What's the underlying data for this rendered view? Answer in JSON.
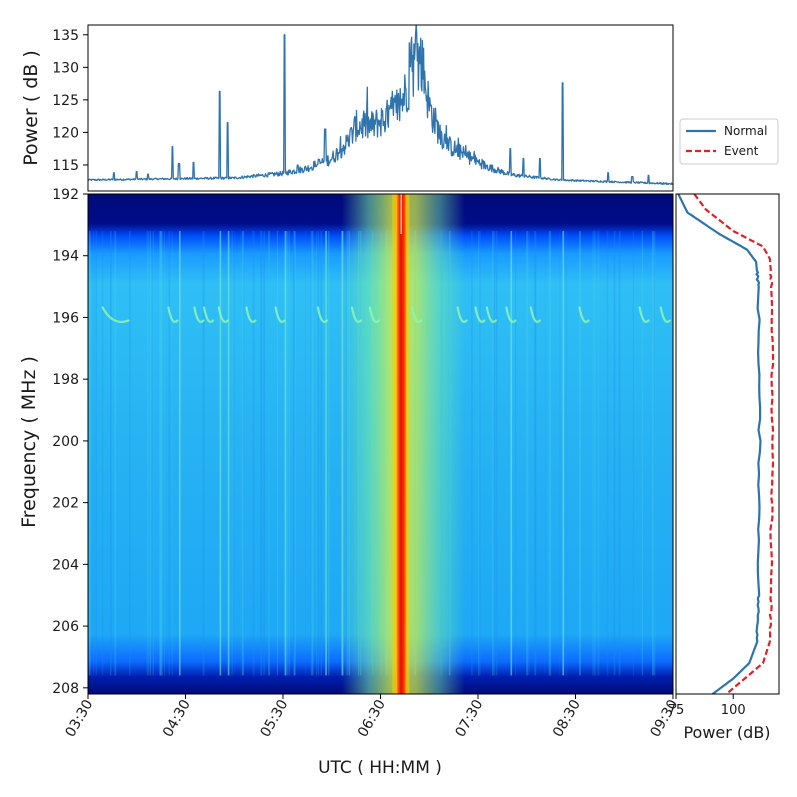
{
  "chart_data": [
    {
      "type": "line",
      "name": "power-timeseries",
      "ylabel": "Power ( dB )",
      "yticks": [
        115,
        120,
        125,
        130,
        135
      ],
      "ylim": [
        111,
        136.5
      ],
      "xlim_minutes": [
        210,
        570
      ],
      "series": [
        {
          "name": "Power",
          "color": "#2f73ad",
          "baseline": 112.7,
          "envelope": [
            [
              210,
              112.7
            ],
            [
              300,
              113
            ],
            [
              330,
              113.7
            ],
            [
              345,
              114.5
            ],
            [
              360,
              116
            ],
            [
              370,
              118.5
            ],
            [
              375,
              121
            ],
            [
              385,
              121
            ],
            [
              395,
              122.5
            ],
            [
              402,
              124
            ],
            [
              408,
              128
            ],
            [
              412,
              131.5
            ],
            [
              416,
              130
            ],
            [
              420,
              124
            ],
            [
              426,
              120
            ],
            [
              432,
              118
            ],
            [
              442,
              116.5
            ],
            [
              455,
              114.8
            ],
            [
              470,
              113.5
            ],
            [
              500,
              112.7
            ],
            [
              570,
              112.1
            ]
          ],
          "spikes": [
            [
              226,
              113.8
            ],
            [
              240,
              114
            ],
            [
              247,
              113.6
            ],
            [
              262,
              117.8
            ],
            [
              266,
              115.2
            ],
            [
              275,
              115.4
            ],
            [
              291,
              126.3
            ],
            [
              296,
              121.5
            ],
            [
              331,
              135.0
            ],
            [
              339,
              115
            ],
            [
              356,
              120.5
            ],
            [
              409,
              133.8
            ],
            [
              412,
              135.2
            ],
            [
              470,
              117.5
            ],
            [
              478,
              116
            ],
            [
              488,
              116
            ],
            [
              502,
              127.6
            ],
            [
              530,
              113.8
            ],
            [
              545,
              113.2
            ],
            [
              555,
              113.4
            ]
          ]
        }
      ]
    },
    {
      "type": "heatmap",
      "name": "spectrogram",
      "xlabel": "UTC ( HH:MM )",
      "ylabel": "Frequency ( MHz )",
      "xticks": [
        "03:30",
        "04:30",
        "05:30",
        "06:30",
        "07:30",
        "08:30",
        "09:30"
      ],
      "xtick_minutes": [
        210,
        270,
        330,
        390,
        450,
        510,
        570
      ],
      "xlim_minutes": [
        210,
        570
      ],
      "yticks": [
        192,
        194,
        196,
        198,
        200,
        202,
        204,
        206,
        208
      ],
      "ylim": [
        192,
        208.2
      ],
      "colormap": "jet",
      "event_band_minutes": [
        399,
        406
      ],
      "event_core_minutes": [
        399.5,
        403
      ],
      "enhanced_region_minutes": [
        366,
        442
      ],
      "arc_features_minutes": [
        235,
        265,
        281,
        287,
        296,
        313,
        331,
        357,
        378,
        389,
        415,
        443,
        454,
        461,
        473,
        488,
        518,
        555,
        568
      ],
      "arc_frequency_mhz": 196
    },
    {
      "type": "line",
      "name": "power-spectrum",
      "xlabel": "Power (dB)",
      "xticks": [
        75,
        100
      ],
      "xlim": [
        75,
        120
      ],
      "ylim": [
        192,
        208.2
      ],
      "series": [
        {
          "name": "Normal",
          "color": "#2f73ad",
          "style": "solid",
          "points": [
            [
              192,
              76
            ],
            [
              192.6,
              80
            ],
            [
              193.3,
              94
            ],
            [
              193.8,
              106
            ],
            [
              194.2,
              110
            ],
            [
              195,
              111
            ],
            [
              200,
              111.5
            ],
            [
              205,
              111
            ],
            [
              206.5,
              110.5
            ],
            [
              207.2,
              107
            ],
            [
              207.7,
              100
            ],
            [
              208.2,
              91
            ]
          ]
        },
        {
          "name": "Event",
          "color": "#e0202a",
          "style": "dashed",
          "points": [
            [
              192,
              83
            ],
            [
              192.5,
              88
            ],
            [
              193.2,
              100
            ],
            [
              193.7,
              113
            ],
            [
              194.1,
              116
            ],
            [
              195,
              117
            ],
            [
              200,
              117
            ],
            [
              205,
              116.5
            ],
            [
              206.5,
              116
            ],
            [
              207.2,
              113
            ],
            [
              207.7,
              105
            ],
            [
              208.2,
              97
            ]
          ]
        }
      ],
      "legend": [
        "Normal",
        "Event"
      ],
      "legend_position": "right"
    }
  ]
}
